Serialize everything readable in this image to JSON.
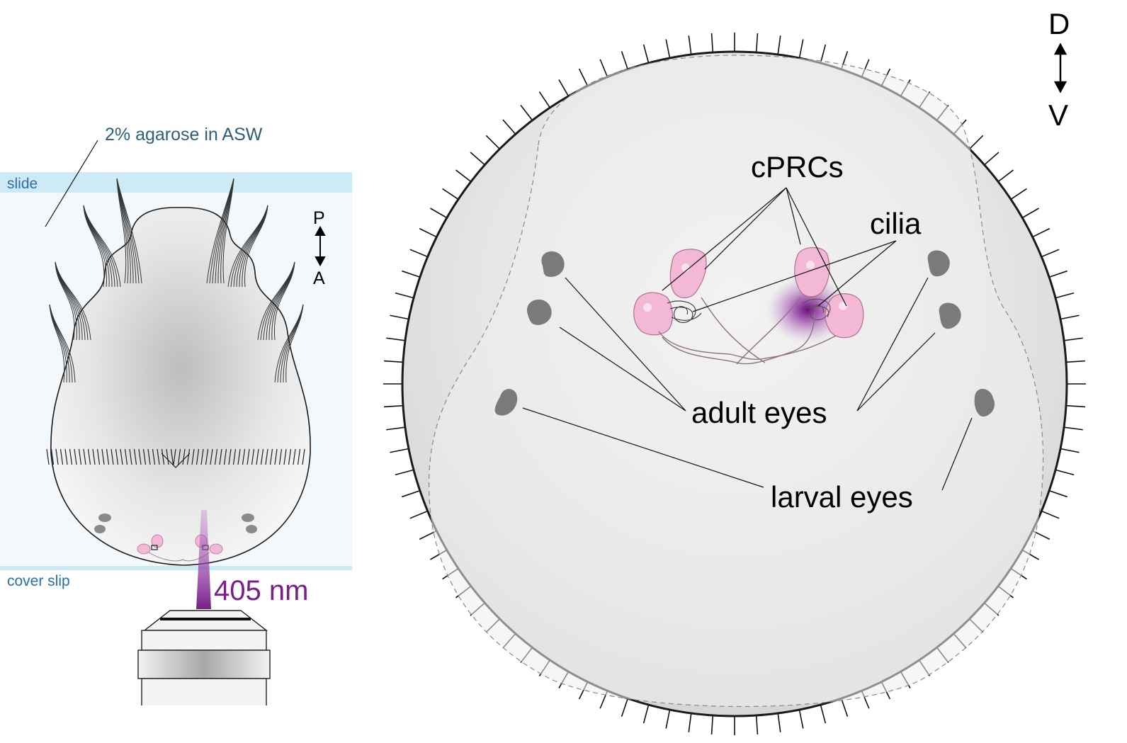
{
  "left_panel": {
    "agarose_label": "2% agarose in ASW",
    "slide_label": "slide",
    "cover_slip_label": "cover slip",
    "axis_top": "P",
    "axis_bottom": "A",
    "laser_label": "405 nm"
  },
  "right_panel": {
    "axis_top": "D",
    "axis_bottom": "V",
    "labels": {
      "cprcs": "cPRCs",
      "cilia": "cilia",
      "adult_eyes": "adult eyes",
      "larval_eyes": "larval eyes"
    }
  },
  "colors": {
    "agarose": "#f2f8fc",
    "slide": "#cdeaf7",
    "cell_pink": "#f2b8d6",
    "eye_gray": "#7a7a7a",
    "laser_purple": "#7a1f8a"
  }
}
